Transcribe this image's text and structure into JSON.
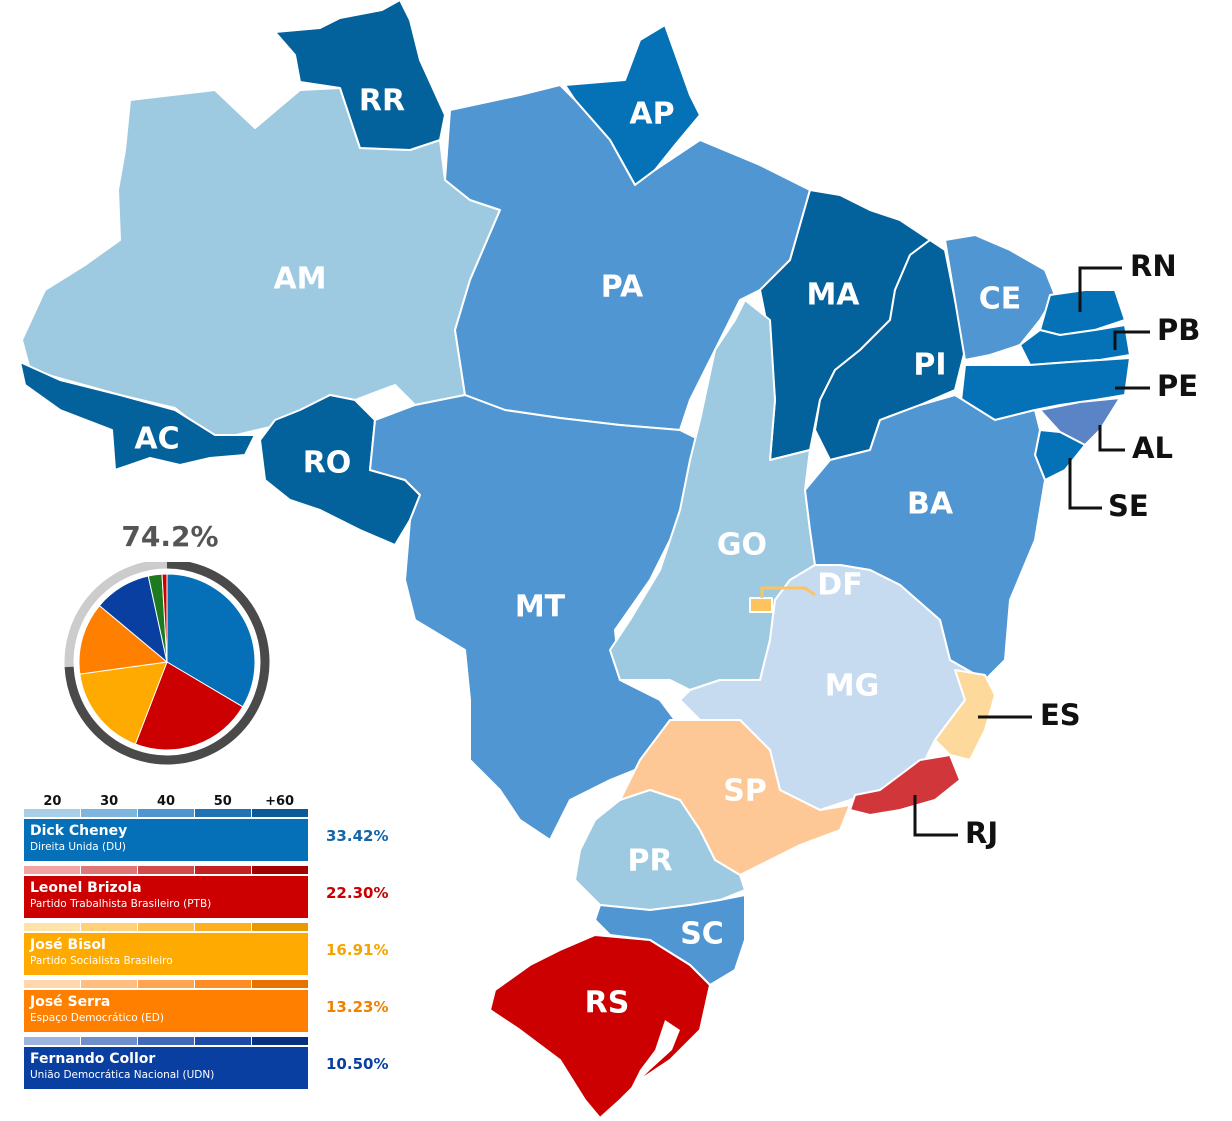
{
  "states": [
    {
      "abbr": "RR",
      "color": "#03619b"
    },
    {
      "abbr": "AP",
      "color": "#0571b6"
    },
    {
      "abbr": "AM",
      "color": "#9ecae1"
    },
    {
      "abbr": "PA",
      "color": "#5096d2"
    },
    {
      "abbr": "MA",
      "color": "#03619b"
    },
    {
      "abbr": "PI",
      "color": "#03619b"
    },
    {
      "abbr": "CE",
      "color": "#5096d2"
    },
    {
      "abbr": "RN",
      "color": "#0571b6"
    },
    {
      "abbr": "PB",
      "color": "#0571b6"
    },
    {
      "abbr": "PE",
      "color": "#0571b6"
    },
    {
      "abbr": "AL",
      "color": "#5b84c6"
    },
    {
      "abbr": "SE",
      "color": "#0571b6"
    },
    {
      "abbr": "AC",
      "color": "#03619b"
    },
    {
      "abbr": "RO",
      "color": "#03619b"
    },
    {
      "abbr": "MT",
      "color": "#5096d2"
    },
    {
      "abbr": "GO",
      "color": "#9ecae1"
    },
    {
      "abbr": "DF",
      "color": "#fdc35f"
    },
    {
      "abbr": "BA",
      "color": "#5096d2"
    },
    {
      "abbr": "MG",
      "color": "#c6dbef"
    },
    {
      "abbr": "ES",
      "color": "#fdd99b"
    },
    {
      "abbr": "RJ",
      "color": "#d1363a"
    },
    {
      "abbr": "SP",
      "color": "#fdc896"
    },
    {
      "abbr": "PR",
      "color": "#9ecae1"
    },
    {
      "abbr": "SC",
      "color": "#5096d2"
    },
    {
      "abbr": "RS",
      "color": "#cc0000"
    }
  ],
  "turnout": "74.2%",
  "turnout_fraction": 0.742,
  "scale_labels": [
    "20",
    "30",
    "40",
    "50",
    "+60"
  ],
  "candidates": [
    {
      "name": "Dick Cheney",
      "party": "Direita Unida (DU)",
      "pct": "33.42%",
      "share": 33.42,
      "color": "#0570b8",
      "text_color": "#1565a8",
      "scale": [
        "#a9cfe6",
        "#7fb5dc",
        "#4f96cf",
        "#1f73b5",
        "#0b5a97"
      ]
    },
    {
      "name": "Leonel Brizola",
      "party": "Partido Trabalhista Brasileiro (PTB)",
      "pct": "22.30%",
      "share": 22.3,
      "color": "#cc0000",
      "text_color": "#cc0000",
      "scale": [
        "#f0a4a4",
        "#e07777",
        "#d24b4b",
        "#c22222",
        "#a30000"
      ]
    },
    {
      "name": "José Bisol",
      "party": "Partido Socialista Brasileiro",
      "pct": "16.91%",
      "share": 16.91,
      "color": "#ffaa00",
      "text_color": "#f5a300",
      "scale": [
        "#ffe3a8",
        "#ffd27a",
        "#ffc04d",
        "#ffb020",
        "#e89a00"
      ]
    },
    {
      "name": "José Serra",
      "party": "Espaço Democrático (ED)",
      "pct": "13.23%",
      "share": 13.23,
      "color": "#ff8000",
      "text_color": "#f08000",
      "scale": [
        "#ffd6ad",
        "#ffbd80",
        "#ffa452",
        "#ff8c25",
        "#e67300"
      ]
    },
    {
      "name": "Fernando Collor",
      "party": "União Democrática Nacional (UDN)",
      "pct": "10.50%",
      "share": 10.5,
      "color": "#0a3fa2",
      "text_color": "#0a3fa2",
      "scale": [
        "#9db5de",
        "#6e8fcb",
        "#4169b8",
        "#1d4aa6",
        "#08307f"
      ]
    }
  ],
  "pie_other": [
    {
      "share": 2.5,
      "color": "#1e7a1e"
    },
    {
      "share": 0.9,
      "color": "#cc0000"
    }
  ]
}
